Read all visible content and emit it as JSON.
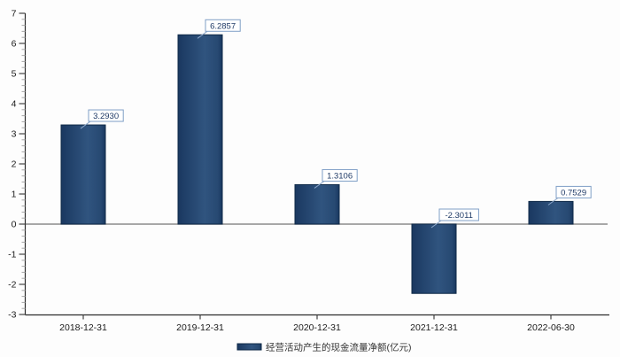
{
  "chart_data": {
    "type": "bar",
    "title": "",
    "xlabel": "",
    "ylabel": "",
    "categories": [
      "2018-12-31",
      "2019-12-31",
      "2020-12-31",
      "2021-12-31",
      "2022-06-30"
    ],
    "series": [
      {
        "name": "经营活动产生的现金流量净额(亿元)",
        "values": [
          3.293,
          6.2857,
          1.3106,
          -2.3011,
          0.7529
        ]
      }
    ],
    "data_labels": [
      "3.2930",
      "6.2857",
      "1.3106",
      "-2.3011",
      "0.7529"
    ],
    "ylim": [
      -3,
      7
    ],
    "y_major_step": 1,
    "y_minor_step": 0.2,
    "y_tick_labels": [
      "7",
      "6",
      "5",
      "4",
      "3",
      "2",
      "1",
      "0",
      "-1",
      "-2",
      "-3"
    ],
    "grid": false,
    "zero_line": true,
    "legend_position": "bottom-center"
  },
  "legend": {
    "label": "经营活动产生的现金流量净额(亿元)",
    "swatch": "bar-gradient-swatch"
  },
  "colors": {
    "background": "#fdfdfd",
    "bar_edge_dark": "#1a3860",
    "bar_mid_light": "#30547f",
    "bar_border": "#0e2947",
    "axis_line": "#2b2b2b",
    "major_tick": "#444444",
    "minor_tick": "#a8a8a8",
    "zero_line": "#8c8c8c",
    "tick_text": "#1a1a1a",
    "callout_border": "#7f9fc6",
    "callout_connector": "#8aa5c8",
    "callout_text": "#1f3a66",
    "legend_text": "#333333"
  }
}
